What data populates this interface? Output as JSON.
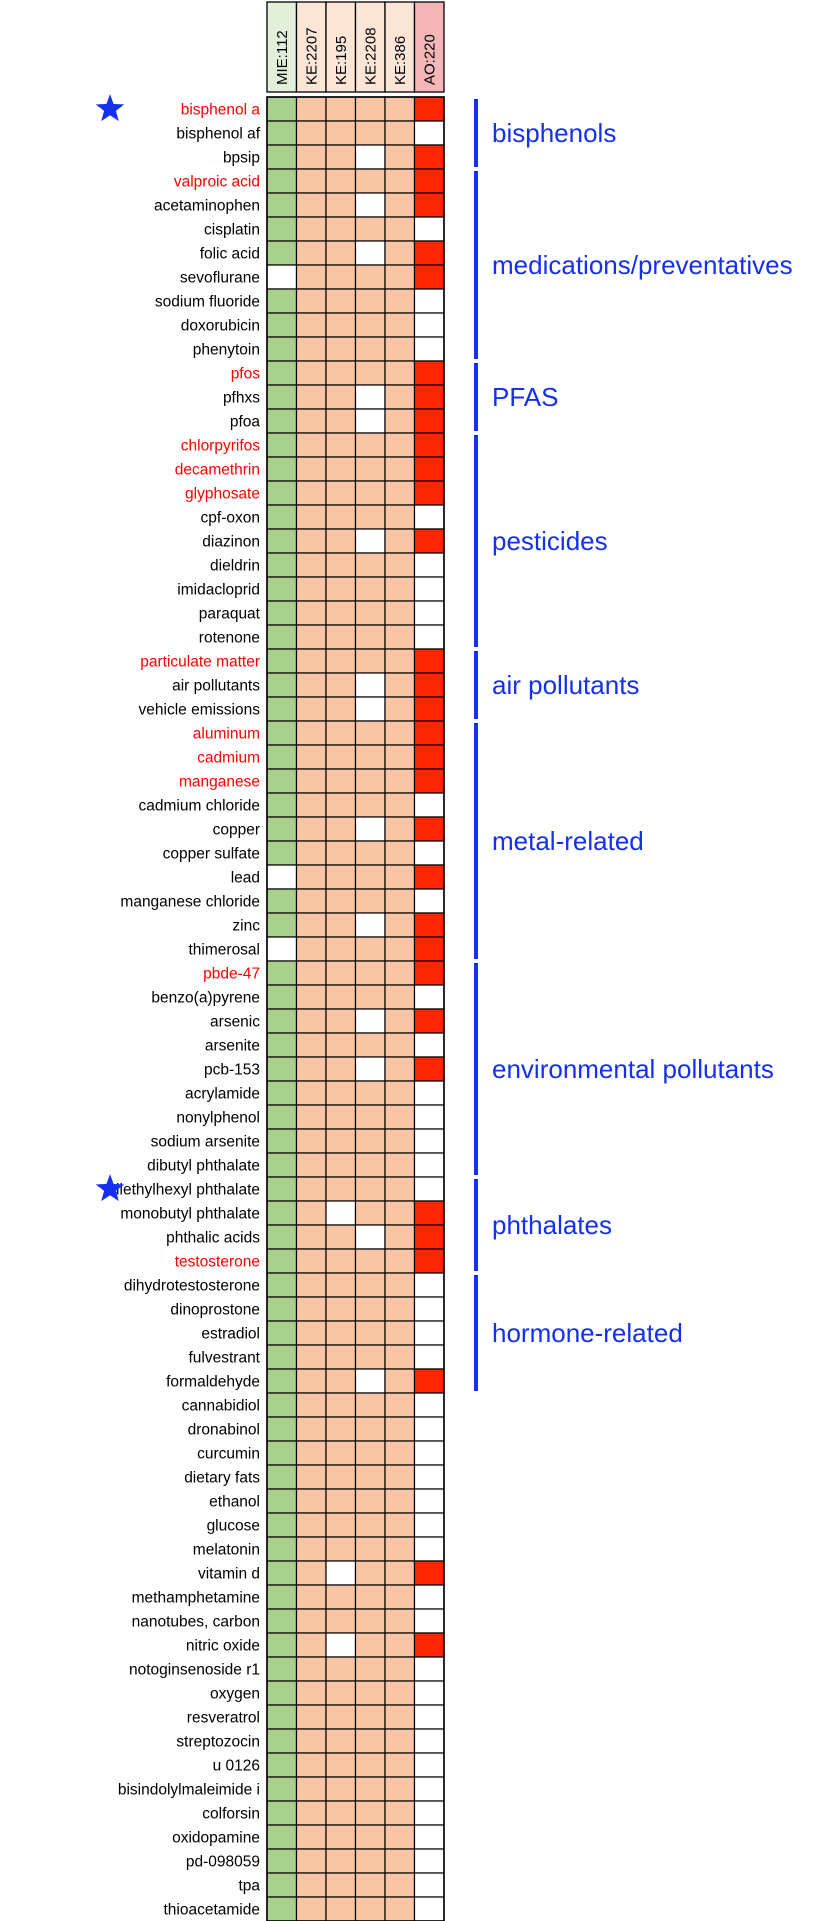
{
  "colors": {
    "mie_filled": "#a9d18e",
    "ke_filled": "#f8c6a4",
    "ao_filled": "#ff2600",
    "empty": "#ffffff",
    "grid": "#000000",
    "highlight_text": "#ff0000",
    "normal_text": "#000000",
    "group_line": "#1530ee",
    "star": "#1530ee",
    "header_mie": "#e2f0d9",
    "header_ke": "#fbe5d6",
    "header_ao": "#f4b6b6"
  },
  "chart_data": {
    "type": "heatmap",
    "columns": [
      {
        "label": "MIE:112",
        "kind": "mie"
      },
      {
        "label": "KE:2207",
        "kind": "ke"
      },
      {
        "label": "KE:195",
        "kind": "ke"
      },
      {
        "label": "KE:2208",
        "kind": "ke"
      },
      {
        "label": "KE:386",
        "kind": "ke"
      },
      {
        "label": "AO:220",
        "kind": "ao"
      }
    ],
    "rows": [
      {
        "label": "bisphenol a",
        "highlight": true,
        "star": true,
        "values": [
          1,
          1,
          1,
          1,
          1,
          1
        ]
      },
      {
        "label": "bisphenol af",
        "highlight": false,
        "star": false,
        "values": [
          1,
          1,
          1,
          1,
          1,
          0
        ]
      },
      {
        "label": "bpsip",
        "highlight": false,
        "star": false,
        "values": [
          1,
          1,
          1,
          0,
          1,
          1
        ]
      },
      {
        "label": "valproic acid",
        "highlight": true,
        "star": false,
        "values": [
          1,
          1,
          1,
          1,
          1,
          1
        ]
      },
      {
        "label": "acetaminophen",
        "highlight": false,
        "star": false,
        "values": [
          1,
          1,
          1,
          0,
          1,
          1
        ]
      },
      {
        "label": "cisplatin",
        "highlight": false,
        "star": false,
        "values": [
          1,
          1,
          1,
          1,
          1,
          0
        ]
      },
      {
        "label": "folic acid",
        "highlight": false,
        "star": false,
        "values": [
          1,
          1,
          1,
          0,
          1,
          1
        ]
      },
      {
        "label": "sevoflurane",
        "highlight": false,
        "star": false,
        "values": [
          0,
          1,
          1,
          1,
          1,
          1
        ]
      },
      {
        "label": "sodium fluoride",
        "highlight": false,
        "star": false,
        "values": [
          1,
          1,
          1,
          1,
          1,
          0
        ]
      },
      {
        "label": "doxorubicin",
        "highlight": false,
        "star": false,
        "values": [
          1,
          1,
          1,
          1,
          1,
          0
        ]
      },
      {
        "label": "phenytoin",
        "highlight": false,
        "star": false,
        "values": [
          1,
          1,
          1,
          1,
          1,
          0
        ]
      },
      {
        "label": "pfos",
        "highlight": true,
        "star": false,
        "values": [
          1,
          1,
          1,
          1,
          1,
          1
        ]
      },
      {
        "label": "pfhxs",
        "highlight": false,
        "star": false,
        "values": [
          1,
          1,
          1,
          0,
          1,
          1
        ]
      },
      {
        "label": "pfoa",
        "highlight": false,
        "star": false,
        "values": [
          1,
          1,
          1,
          0,
          1,
          1
        ]
      },
      {
        "label": "chlorpyrifos",
        "highlight": true,
        "star": false,
        "values": [
          1,
          1,
          1,
          1,
          1,
          1
        ]
      },
      {
        "label": "decamethrin",
        "highlight": true,
        "star": false,
        "values": [
          1,
          1,
          1,
          1,
          1,
          1
        ]
      },
      {
        "label": "glyphosate",
        "highlight": true,
        "star": false,
        "values": [
          1,
          1,
          1,
          1,
          1,
          1
        ]
      },
      {
        "label": "cpf-oxon",
        "highlight": false,
        "star": false,
        "values": [
          1,
          1,
          1,
          1,
          1,
          0
        ]
      },
      {
        "label": "diazinon",
        "highlight": false,
        "star": false,
        "values": [
          1,
          1,
          1,
          0,
          1,
          1
        ]
      },
      {
        "label": "dieldrin",
        "highlight": false,
        "star": false,
        "values": [
          1,
          1,
          1,
          1,
          1,
          0
        ]
      },
      {
        "label": "imidacloprid",
        "highlight": false,
        "star": false,
        "values": [
          1,
          1,
          1,
          1,
          1,
          0
        ]
      },
      {
        "label": "paraquat",
        "highlight": false,
        "star": false,
        "values": [
          1,
          1,
          1,
          1,
          1,
          0
        ]
      },
      {
        "label": "rotenone",
        "highlight": false,
        "star": false,
        "values": [
          1,
          1,
          1,
          1,
          1,
          0
        ]
      },
      {
        "label": "particulate matter",
        "highlight": true,
        "star": false,
        "values": [
          1,
          1,
          1,
          1,
          1,
          1
        ]
      },
      {
        "label": "air pollutants",
        "highlight": false,
        "star": false,
        "values": [
          1,
          1,
          1,
          0,
          1,
          1
        ]
      },
      {
        "label": "vehicle emissions",
        "highlight": false,
        "star": false,
        "values": [
          1,
          1,
          1,
          0,
          1,
          1
        ]
      },
      {
        "label": "aluminum",
        "highlight": true,
        "star": false,
        "values": [
          1,
          1,
          1,
          1,
          1,
          1
        ]
      },
      {
        "label": "cadmium",
        "highlight": true,
        "star": false,
        "values": [
          1,
          1,
          1,
          1,
          1,
          1
        ]
      },
      {
        "label": "manganese",
        "highlight": true,
        "star": false,
        "values": [
          1,
          1,
          1,
          1,
          1,
          1
        ]
      },
      {
        "label": "cadmium chloride",
        "highlight": false,
        "star": false,
        "values": [
          1,
          1,
          1,
          1,
          1,
          0
        ]
      },
      {
        "label": "copper",
        "highlight": false,
        "star": false,
        "values": [
          1,
          1,
          1,
          0,
          1,
          1
        ]
      },
      {
        "label": "copper sulfate",
        "highlight": false,
        "star": false,
        "values": [
          1,
          1,
          1,
          1,
          1,
          0
        ]
      },
      {
        "label": "lead",
        "highlight": false,
        "star": false,
        "values": [
          0,
          1,
          1,
          1,
          1,
          1
        ]
      },
      {
        "label": "manganese chloride",
        "highlight": false,
        "star": false,
        "values": [
          1,
          1,
          1,
          1,
          1,
          0
        ]
      },
      {
        "label": "zinc",
        "highlight": false,
        "star": false,
        "values": [
          1,
          1,
          1,
          0,
          1,
          1
        ]
      },
      {
        "label": "thimerosal",
        "highlight": false,
        "star": false,
        "values": [
          0,
          1,
          1,
          1,
          1,
          1
        ]
      },
      {
        "label": "pbde-47",
        "highlight": true,
        "star": false,
        "values": [
          1,
          1,
          1,
          1,
          1,
          1
        ]
      },
      {
        "label": "benzo(a)pyrene",
        "highlight": false,
        "star": false,
        "values": [
          1,
          1,
          1,
          1,
          1,
          0
        ]
      },
      {
        "label": "arsenic",
        "highlight": false,
        "star": false,
        "values": [
          1,
          1,
          1,
          0,
          1,
          1
        ]
      },
      {
        "label": "arsenite",
        "highlight": false,
        "star": false,
        "values": [
          1,
          1,
          1,
          1,
          1,
          0
        ]
      },
      {
        "label": "pcb-153",
        "highlight": false,
        "star": false,
        "values": [
          1,
          1,
          1,
          0,
          1,
          1
        ]
      },
      {
        "label": "acrylamide",
        "highlight": false,
        "star": false,
        "values": [
          1,
          1,
          1,
          1,
          1,
          0
        ]
      },
      {
        "label": "nonylphenol",
        "highlight": false,
        "star": false,
        "values": [
          1,
          1,
          1,
          1,
          1,
          0
        ]
      },
      {
        "label": "sodium arsenite",
        "highlight": false,
        "star": false,
        "values": [
          1,
          1,
          1,
          1,
          1,
          0
        ]
      },
      {
        "label": "dibutyl phthalate",
        "highlight": false,
        "star": false,
        "values": [
          1,
          1,
          1,
          1,
          1,
          0
        ]
      },
      {
        "label": "diethylhexyl phthalate",
        "highlight": false,
        "star": true,
        "values": [
          1,
          1,
          1,
          1,
          1,
          0
        ]
      },
      {
        "label": "monobutyl phthalate",
        "highlight": false,
        "star": false,
        "values": [
          1,
          1,
          0,
          1,
          1,
          1
        ]
      },
      {
        "label": "phthalic acids",
        "highlight": false,
        "star": false,
        "values": [
          1,
          1,
          1,
          0,
          1,
          1
        ]
      },
      {
        "label": "testosterone",
        "highlight": true,
        "star": false,
        "values": [
          1,
          1,
          1,
          1,
          1,
          1
        ]
      },
      {
        "label": "dihydrotestosterone",
        "highlight": false,
        "star": false,
        "values": [
          1,
          1,
          1,
          1,
          1,
          0
        ]
      },
      {
        "label": "dinoprostone",
        "highlight": false,
        "star": false,
        "values": [
          1,
          1,
          1,
          1,
          1,
          0
        ]
      },
      {
        "label": "estradiol",
        "highlight": false,
        "star": false,
        "values": [
          1,
          1,
          1,
          1,
          1,
          0
        ]
      },
      {
        "label": "fulvestrant",
        "highlight": false,
        "star": false,
        "values": [
          1,
          1,
          1,
          1,
          1,
          0
        ]
      },
      {
        "label": "formaldehyde",
        "highlight": false,
        "star": false,
        "values": [
          1,
          1,
          1,
          0,
          1,
          1
        ]
      },
      {
        "label": "cannabidiol",
        "highlight": false,
        "star": false,
        "values": [
          1,
          1,
          1,
          1,
          1,
          0
        ]
      },
      {
        "label": "dronabinol",
        "highlight": false,
        "star": false,
        "values": [
          1,
          1,
          1,
          1,
          1,
          0
        ]
      },
      {
        "label": "curcumin",
        "highlight": false,
        "star": false,
        "values": [
          1,
          1,
          1,
          1,
          1,
          0
        ]
      },
      {
        "label": "dietary fats",
        "highlight": false,
        "star": false,
        "values": [
          1,
          1,
          1,
          1,
          1,
          0
        ]
      },
      {
        "label": "ethanol",
        "highlight": false,
        "star": false,
        "values": [
          1,
          1,
          1,
          1,
          1,
          0
        ]
      },
      {
        "label": "glucose",
        "highlight": false,
        "star": false,
        "values": [
          1,
          1,
          1,
          1,
          1,
          0
        ]
      },
      {
        "label": "melatonin",
        "highlight": false,
        "star": false,
        "values": [
          1,
          1,
          1,
          1,
          1,
          0
        ]
      },
      {
        "label": "vitamin d",
        "highlight": false,
        "star": false,
        "values": [
          1,
          1,
          0,
          1,
          1,
          1
        ]
      },
      {
        "label": "methamphetamine",
        "highlight": false,
        "star": false,
        "values": [
          1,
          1,
          1,
          1,
          1,
          0
        ]
      },
      {
        "label": "nanotubes, carbon",
        "highlight": false,
        "star": false,
        "values": [
          1,
          1,
          1,
          1,
          1,
          0
        ]
      },
      {
        "label": "nitric oxide",
        "highlight": false,
        "star": false,
        "values": [
          1,
          1,
          0,
          1,
          1,
          1
        ]
      },
      {
        "label": "notoginsenoside r1",
        "highlight": false,
        "star": false,
        "values": [
          1,
          1,
          1,
          1,
          1,
          0
        ]
      },
      {
        "label": "oxygen",
        "highlight": false,
        "star": false,
        "values": [
          1,
          1,
          1,
          1,
          1,
          0
        ]
      },
      {
        "label": "resveratrol",
        "highlight": false,
        "star": false,
        "values": [
          1,
          1,
          1,
          1,
          1,
          0
        ]
      },
      {
        "label": "streptozocin",
        "highlight": false,
        "star": false,
        "values": [
          1,
          1,
          1,
          1,
          1,
          0
        ]
      },
      {
        "label": "u 0126",
        "highlight": false,
        "star": false,
        "values": [
          1,
          1,
          1,
          1,
          1,
          0
        ]
      },
      {
        "label": "bisindolylmaleimide i",
        "highlight": false,
        "star": false,
        "values": [
          1,
          1,
          1,
          1,
          1,
          0
        ]
      },
      {
        "label": "colforsin",
        "highlight": false,
        "star": false,
        "values": [
          1,
          1,
          1,
          1,
          1,
          0
        ]
      },
      {
        "label": "oxidopamine",
        "highlight": false,
        "star": false,
        "values": [
          1,
          1,
          1,
          1,
          1,
          0
        ]
      },
      {
        "label": "pd-098059",
        "highlight": false,
        "star": false,
        "values": [
          1,
          1,
          1,
          1,
          1,
          0
        ]
      },
      {
        "label": "tpa",
        "highlight": false,
        "star": false,
        "values": [
          1,
          1,
          1,
          1,
          1,
          0
        ]
      },
      {
        "label": "thioacetamide",
        "highlight": false,
        "star": false,
        "values": [
          1,
          1,
          1,
          1,
          1,
          0
        ]
      }
    ],
    "groups": [
      {
        "label": "bisphenols",
        "first_row": 0,
        "last_row": 2
      },
      {
        "label": "medications/preventatives",
        "first_row": 3,
        "last_row": 10
      },
      {
        "label": "PFAS",
        "first_row": 11,
        "last_row": 13
      },
      {
        "label": "pesticides",
        "first_row": 14,
        "last_row": 22
      },
      {
        "label": "air pollutants",
        "first_row": 23,
        "last_row": 25
      },
      {
        "label": "metal-related",
        "first_row": 26,
        "last_row": 35
      },
      {
        "label": "environmental pollutants",
        "first_row": 36,
        "last_row": 44
      },
      {
        "label": "phthalates",
        "first_row": 45,
        "last_row": 48
      },
      {
        "label": "hormone-related",
        "first_row": 49,
        "last_row": 53
      }
    ]
  }
}
